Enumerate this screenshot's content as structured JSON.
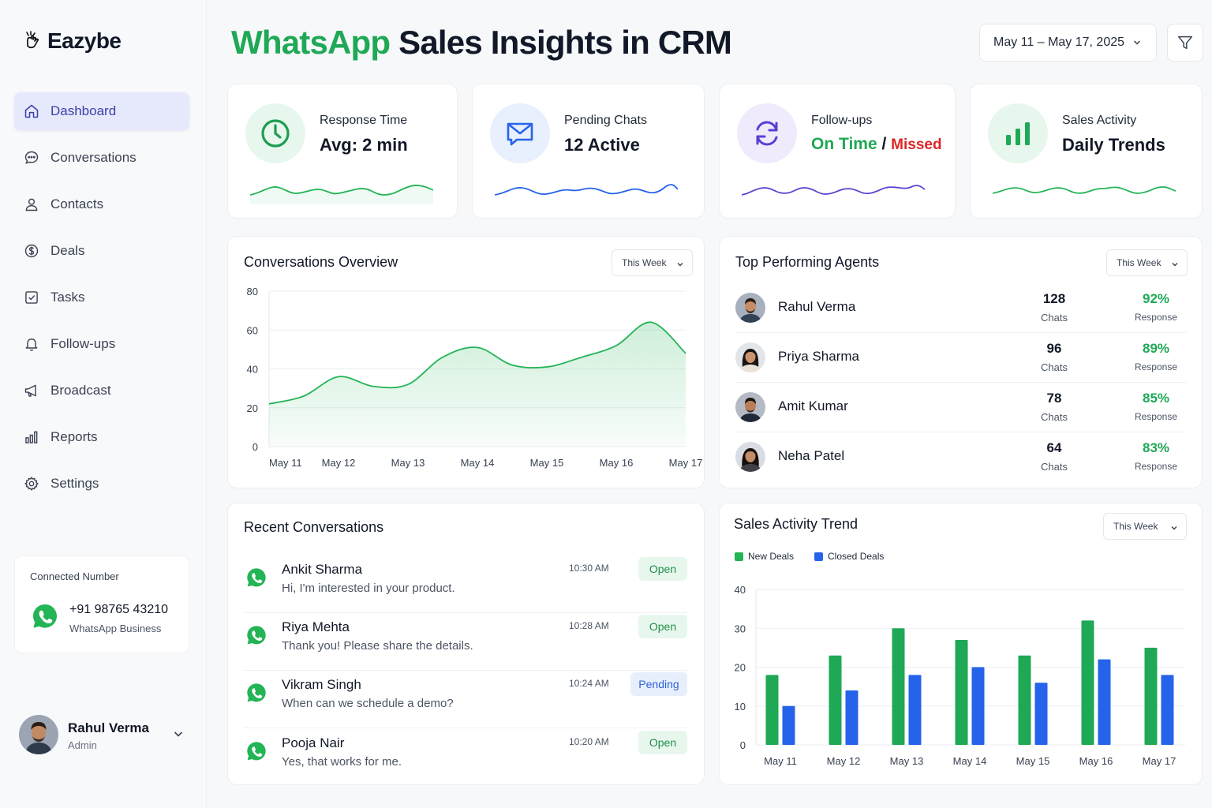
{
  "brand": {
    "name": "Eazybe"
  },
  "sidebar": {
    "items": [
      {
        "id": "dashboard",
        "label": "Dashboard",
        "icon": "home-icon",
        "active": true
      },
      {
        "id": "conversations",
        "label": "Conversations",
        "icon": "chat-bubble-icon"
      },
      {
        "id": "contacts",
        "label": "Contacts",
        "icon": "user-icon"
      },
      {
        "id": "deals",
        "label": "Deals",
        "icon": "dollar-circle-icon"
      },
      {
        "id": "tasks",
        "label": "Tasks",
        "icon": "checkbox-icon"
      },
      {
        "id": "followups",
        "label": "Follow-ups",
        "icon": "bell-icon"
      },
      {
        "id": "broadcast",
        "label": "Broadcast",
        "icon": "megaphone-icon"
      },
      {
        "id": "reports",
        "label": "Reports",
        "icon": "bar-chart-icon"
      },
      {
        "id": "settings",
        "label": "Settings",
        "icon": "gear-icon"
      }
    ],
    "connected": {
      "label": "Connected Number",
      "number": "+91 98765 43210",
      "type": "WhatsApp Business"
    },
    "user": {
      "name": "Rahul Verma",
      "role": "Admin"
    }
  },
  "header": {
    "title_highlight": "WhatsApp",
    "title_rest": " Sales Insights in CRM",
    "date_range": "May 11 – May 17, 2025"
  },
  "kpis": {
    "response": {
      "label": "Response Time",
      "value": "Avg: 2 min"
    },
    "pending": {
      "label": "Pending Chats",
      "value": "12 Active"
    },
    "followups": {
      "label": "Follow-ups",
      "on_time": "On Time",
      "sep": " / ",
      "missed": "Missed"
    },
    "sales": {
      "label": "Sales Activity",
      "value": "Daily Trends"
    }
  },
  "conversations_overview": {
    "title": "Conversations Overview",
    "period": "This Week"
  },
  "top_agents": {
    "title": "Top Performing Agents",
    "period": "This Week",
    "chats_label": "Chats",
    "response_label": "Response",
    "agents": [
      {
        "name": "Rahul Verma",
        "chats": "128",
        "response": "92%"
      },
      {
        "name": "Priya Sharma",
        "chats": "96",
        "response": "89%"
      },
      {
        "name": "Amit Kumar",
        "chats": "78",
        "response": "85%"
      },
      {
        "name": "Neha Patel",
        "chats": "64",
        "response": "83%"
      }
    ]
  },
  "recent": {
    "title": "Recent Conversations",
    "items": [
      {
        "name": "Ankit Sharma",
        "message": "Hi, I'm interested in your product.",
        "time": "10:30 AM",
        "status": "Open"
      },
      {
        "name": "Riya Mehta",
        "message": "Thank you! Please share the details.",
        "time": "10:28 AM",
        "status": "Open"
      },
      {
        "name": "Vikram Singh",
        "message": "When can we schedule a demo?",
        "time": "10:24 AM",
        "status": "Pending"
      },
      {
        "name": "Pooja Nair",
        "message": "Yes, that works for me.",
        "time": "10:20 AM",
        "status": "Open"
      }
    ]
  },
  "sales_trend": {
    "title": "Sales Activity Trend",
    "period": "This Week"
  },
  "colors": {
    "green": "#1fa855",
    "blue": "#2563eb",
    "missed": "#dc2626",
    "purple": "#5b3fd1"
  },
  "chart_data": [
    {
      "type": "area",
      "title": "Conversations Overview",
      "categories": [
        "May 11",
        "May 12",
        "May 13",
        "May 14",
        "May 15",
        "May 16",
        "May 17"
      ],
      "x": [
        0,
        0.5,
        1,
        1.5,
        2,
        2.5,
        3,
        3.5,
        4,
        4.5,
        5,
        5.5,
        6
      ],
      "values": [
        22,
        26,
        36,
        31,
        32,
        46,
        51,
        42,
        41,
        46,
        52,
        64,
        48
      ],
      "ylim": [
        0,
        80
      ],
      "yticks": [
        0,
        20,
        40,
        60,
        80
      ],
      "grid": true
    },
    {
      "type": "bar",
      "title": "Sales Activity Trend",
      "categories": [
        "May 11",
        "May 12",
        "May 13",
        "May 14",
        "May 15",
        "May 16",
        "May 17"
      ],
      "series": [
        {
          "name": "New Deals",
          "values": [
            18,
            23,
            30,
            27,
            23,
            32,
            25
          ]
        },
        {
          "name": "Closed Deals",
          "values": [
            10,
            14,
            18,
            20,
            16,
            22,
            18
          ]
        }
      ],
      "ylim": [
        0,
        40
      ],
      "yticks": [
        0,
        10,
        20,
        30,
        40
      ],
      "legend": "top-left",
      "grid": true
    }
  ]
}
